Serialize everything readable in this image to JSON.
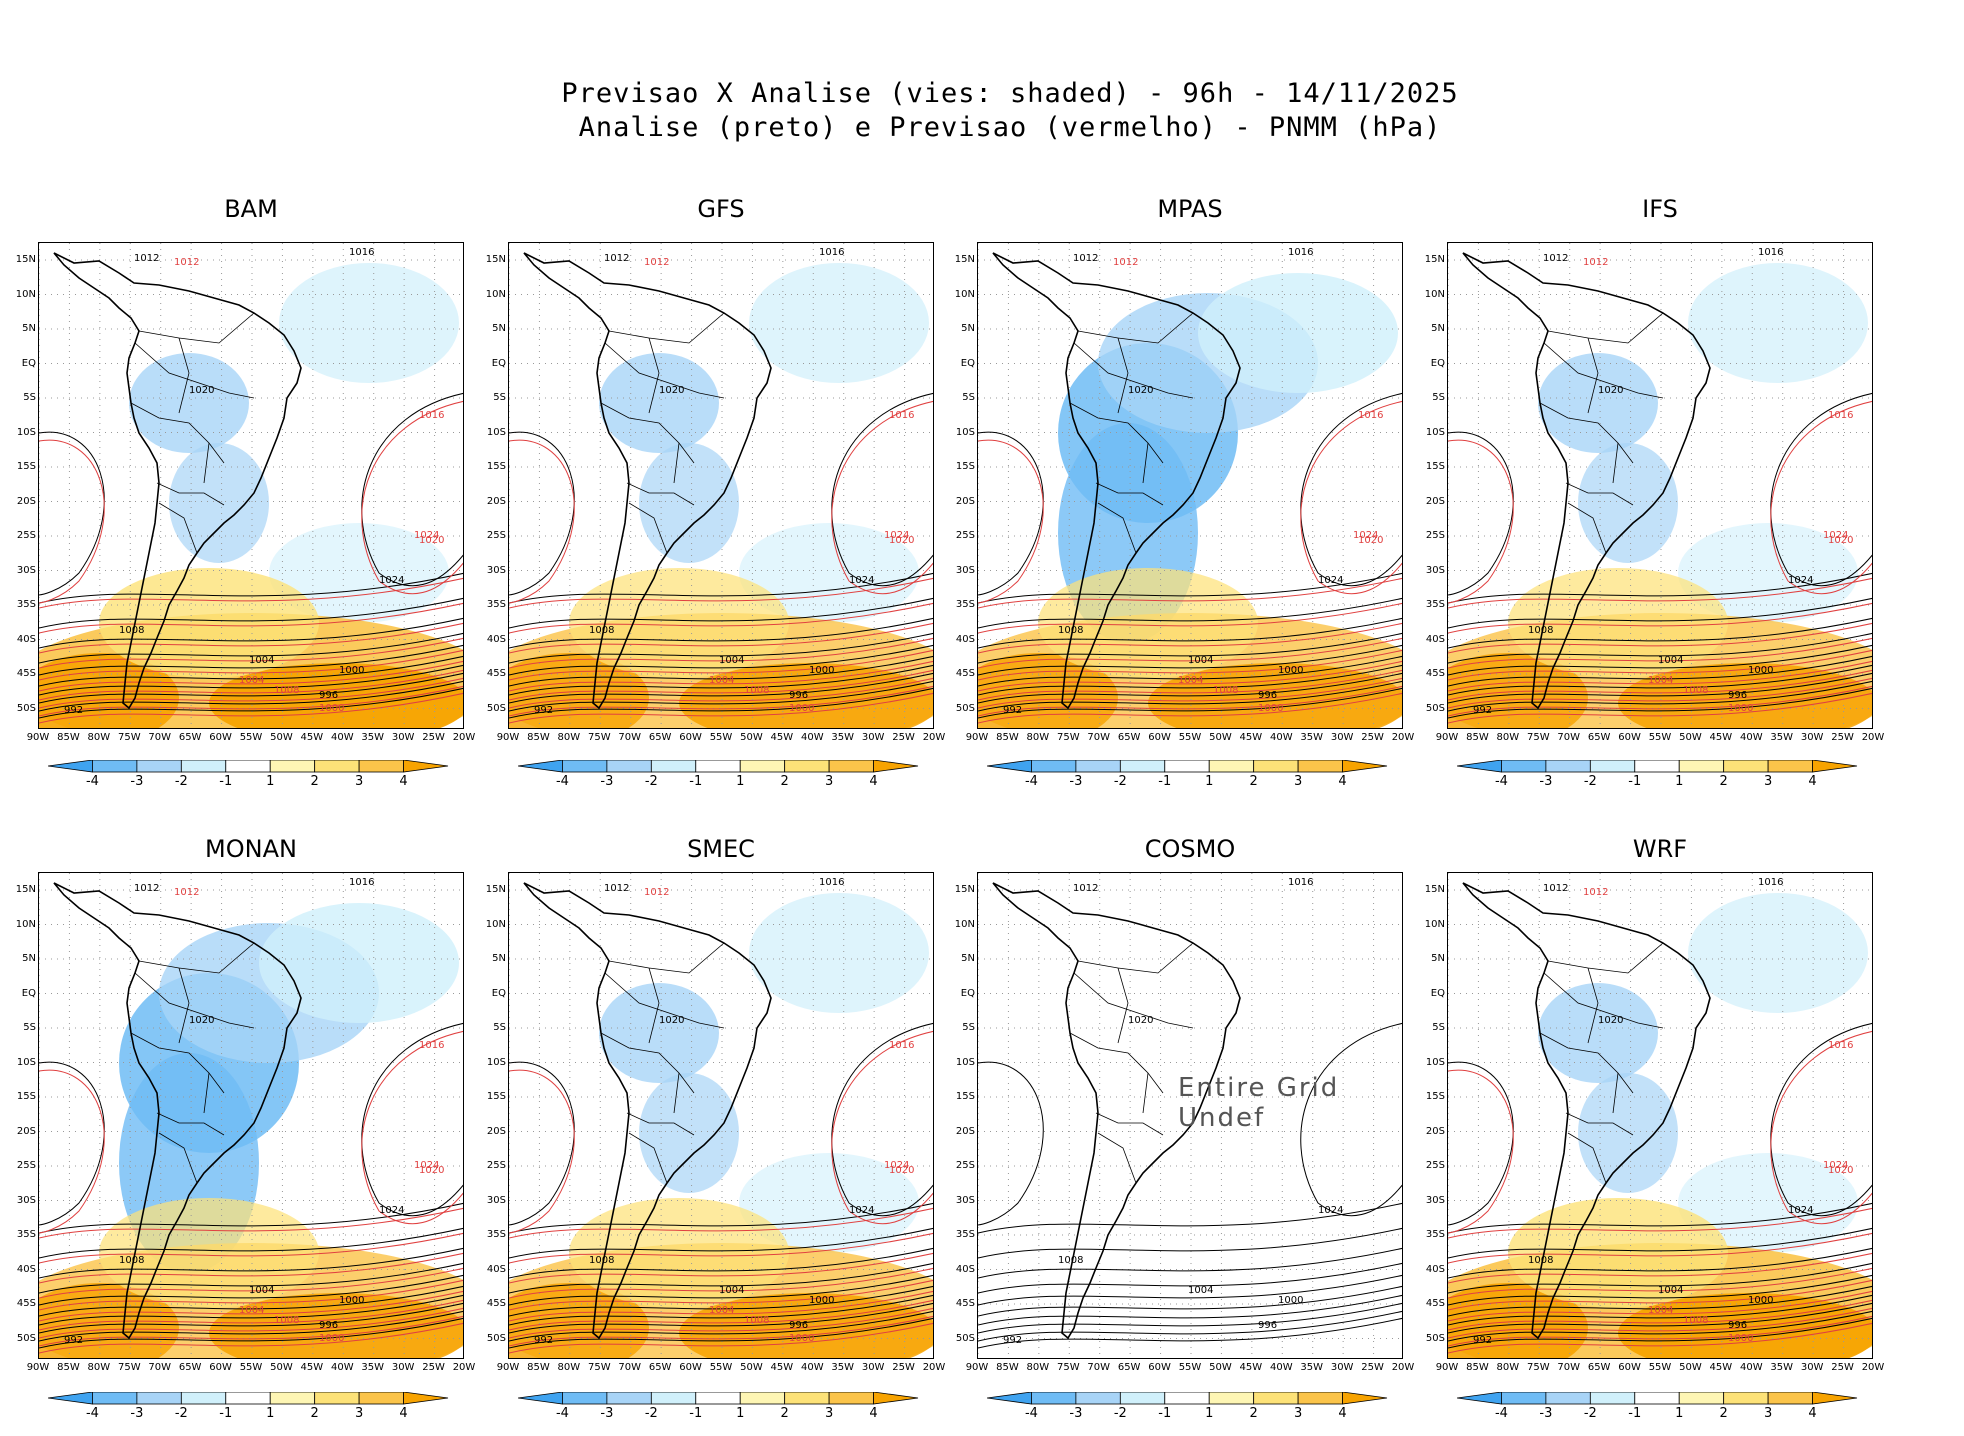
{
  "title": {
    "line1": "Previsao X Analise (vies: shaded) - 96h - 14/11/2025",
    "line2": "Analise (preto) e Previsao (vermelho) - PNMM (hPa)"
  },
  "axes": {
    "lat_labels": [
      "15N",
      "10N",
      "5N",
      "EQ",
      "5S",
      "10S",
      "15S",
      "20S",
      "25S",
      "30S",
      "35S",
      "40S",
      "45S",
      "50S"
    ],
    "lon_labels": [
      "90W",
      "85W",
      "80W",
      "75W",
      "70W",
      "65W",
      "60W",
      "55W",
      "50W",
      "45W",
      "40W",
      "35W",
      "30W",
      "25W",
      "20W"
    ]
  },
  "colorbar": {
    "ticks": [
      "-4",
      "-3",
      "-2",
      "-1",
      "1",
      "2",
      "3",
      "4"
    ],
    "colors": [
      "#3fa3f0",
      "#6fbcf5",
      "#a8d4f7",
      "#d0f0fb",
      "#ffffff",
      "#fef6b4",
      "#fde278",
      "#fbc44a",
      "#f7a300"
    ]
  },
  "panels": [
    {
      "name": "BAM",
      "has_bias": true,
      "bias_pattern": "warm"
    },
    {
      "name": "GFS",
      "has_bias": true,
      "bias_pattern": "mixed"
    },
    {
      "name": "MPAS",
      "has_bias": true,
      "bias_pattern": "cold"
    },
    {
      "name": "IFS",
      "has_bias": true,
      "bias_pattern": "mixed"
    },
    {
      "name": "MONAN",
      "has_bias": true,
      "bias_pattern": "cold"
    },
    {
      "name": "SMEC",
      "has_bias": true,
      "bias_pattern": "mixed"
    },
    {
      "name": "COSMO",
      "has_bias": false,
      "bias_pattern": "none",
      "overlay": "Entire Grid Undef"
    },
    {
      "name": "WRF",
      "has_bias": true,
      "bias_pattern": "warm"
    }
  ],
  "isobar_labels": {
    "analysis": [
      "1012",
      "1016",
      "1020",
      "1024",
      "1008",
      "1004",
      "1000",
      "996",
      "992"
    ],
    "forecast": [
      "1012",
      "1016",
      "1020",
      "1024",
      "1008",
      "1004",
      "1000"
    ]
  }
}
